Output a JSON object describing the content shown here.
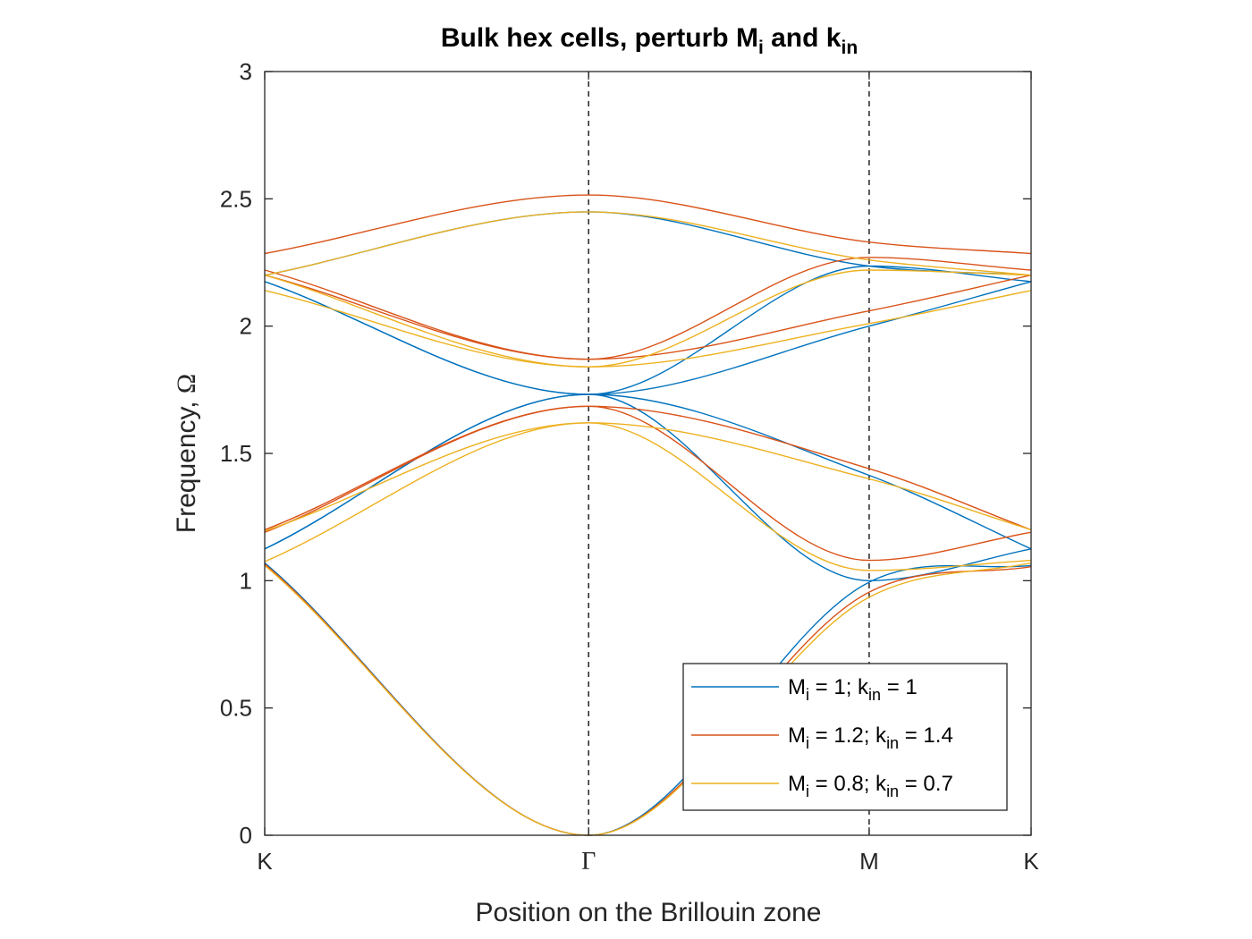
{
  "chart_data": {
    "type": "line",
    "title": {
      "main": "Bulk hex cells, perturb M",
      "sub1": "i",
      "mid": " and k",
      "sub2": "in"
    },
    "xlabel": "Position on the Brillouin zone",
    "ylabel": {
      "text": "Frequency, ",
      "symbol": "Ω"
    },
    "xlim": [
      0,
      1
    ],
    "ylim": [
      0,
      3
    ],
    "yticks": [
      0,
      0.5,
      1,
      1.5,
      2,
      2.5,
      3
    ],
    "ytick_labels": [
      "0",
      "0.5",
      "1",
      "1.5",
      "2",
      "2.5",
      "3"
    ],
    "xticks": [
      {
        "pos": 0,
        "label": "K"
      },
      {
        "pos": 0.4226,
        "label": "Γ"
      },
      {
        "pos": 0.7887,
        "label": "M"
      },
      {
        "pos": 1,
        "label": "K"
      }
    ],
    "high_symmetry_dashed_lines_at": [
      0.4226,
      0.7887
    ],
    "grid": false,
    "legend_position": "bottom-right",
    "x_samples": [
      0,
      0.4226,
      0.7887,
      1
    ],
    "series": [
      {
        "legend": {
          "pre": "M",
          "sub1": "i",
          "mid": " = 1; k",
          "sub2": "in",
          "post": " = 1"
        },
        "color": "#0072BD",
        "bands": [
          [
            1.07,
            0.0,
            0.994,
            1.06
          ],
          [
            1.125,
            1.732,
            1.0,
            1.125
          ],
          [
            1.125,
            1.732,
            1.414,
            1.125
          ],
          [
            2.175,
            1.732,
            2.0,
            2.175
          ],
          [
            2.175,
            1.732,
            2.236,
            2.175
          ],
          [
            2.2,
            2.449,
            2.236,
            2.2
          ]
        ]
      },
      {
        "legend": {
          "pre": "M",
          "sub1": "i",
          "mid": " = 1.2; k",
          "sub2": "in",
          "post": " = 1.4"
        },
        "color": "#D95319",
        "bands": [
          [
            1.065,
            0.0,
            0.955,
            1.055
          ],
          [
            1.19,
            1.685,
            1.08,
            1.19
          ],
          [
            1.2,
            1.685,
            1.44,
            1.2
          ],
          [
            2.2,
            1.87,
            2.06,
            2.2
          ],
          [
            2.22,
            1.87,
            2.27,
            2.22
          ],
          [
            2.285,
            2.515,
            2.33,
            2.285
          ]
        ]
      },
      {
        "legend": {
          "pre": "M",
          "sub1": "i",
          "mid": " = 0.8; k",
          "sub2": "in",
          "post": " = 0.7"
        },
        "color": "#EDB120",
        "bands": [
          [
            1.06,
            0.0,
            0.935,
            1.07
          ],
          [
            1.075,
            1.62,
            1.04,
            1.08
          ],
          [
            1.195,
            1.62,
            1.4,
            1.2
          ],
          [
            2.14,
            1.84,
            2.01,
            2.14
          ],
          [
            2.2,
            1.84,
            2.22,
            2.2
          ],
          [
            2.2,
            2.449,
            2.26,
            2.2
          ]
        ]
      }
    ]
  }
}
